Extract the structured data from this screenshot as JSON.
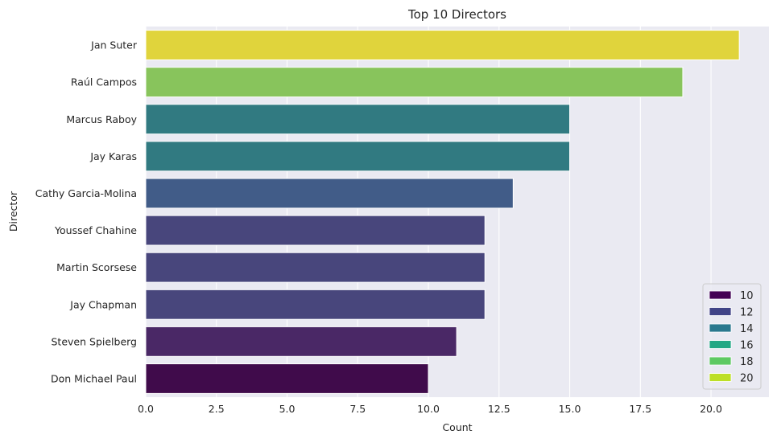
{
  "chart_data": {
    "type": "bar",
    "orientation": "horizontal",
    "title": "Top 10 Directors",
    "xlabel": "Count",
    "ylabel": "Director",
    "categories": [
      "Jan Suter",
      "Raúl Campos",
      "Marcus Raboy",
      "Jay Karas",
      "Cathy Garcia-Molina",
      "Youssef Chahine",
      "Martin Scorsese",
      "Jay Chapman",
      "Steven Spielberg",
      "Don Michael Paul"
    ],
    "values": [
      21,
      19,
      15,
      15,
      13,
      12,
      12,
      12,
      11,
      10
    ],
    "bar_colors": [
      "#e0d43c",
      "#88c45c",
      "#317a81",
      "#317a81",
      "#415c88",
      "#48467c",
      "#48467c",
      "#48467c",
      "#4a2866",
      "#400b4b"
    ],
    "xlim": [
      0,
      22.05
    ],
    "xticks": [
      0.0,
      2.5,
      5.0,
      7.5,
      10.0,
      12.5,
      15.0,
      17.5,
      20.0
    ],
    "xtick_labels": [
      "0.0",
      "2.5",
      "5.0",
      "7.5",
      "10.0",
      "12.5",
      "15.0",
      "17.5",
      "20.0"
    ],
    "grid": true,
    "background_color": "#eaeaf2",
    "grid_color": "#ffffff",
    "colormap": "viridis",
    "legend": {
      "position": "lower-right",
      "entries": [
        {
          "label": "10",
          "color": "#440154"
        },
        {
          "label": "12",
          "color": "#414487"
        },
        {
          "label": "14",
          "color": "#2a788e"
        },
        {
          "label": "16",
          "color": "#22a884"
        },
        {
          "label": "18",
          "color": "#5ec962"
        },
        {
          "label": "20",
          "color": "#bddf26"
        }
      ]
    }
  }
}
